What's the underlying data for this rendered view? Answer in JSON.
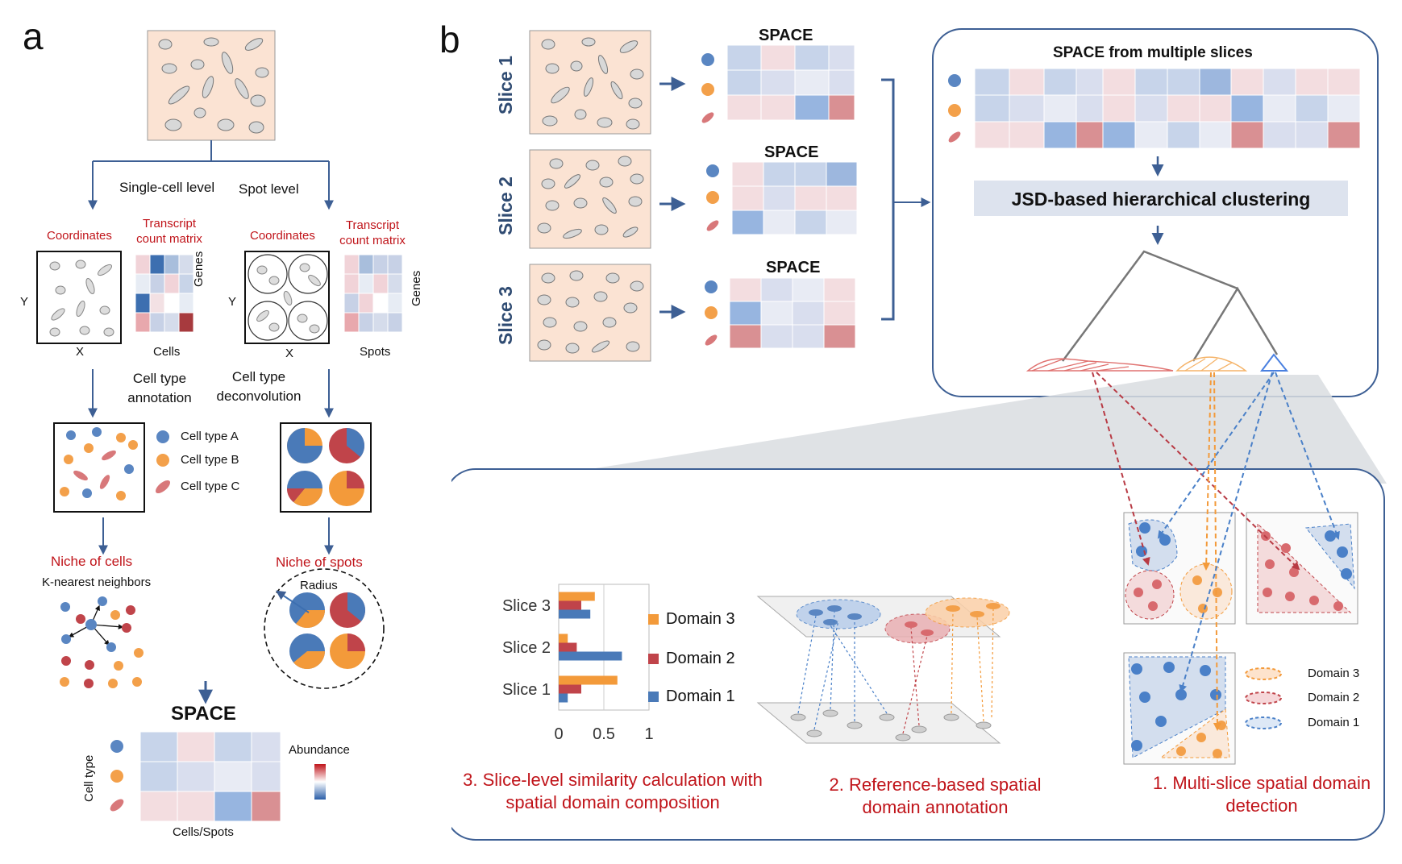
{
  "panel_a": {
    "label": "a",
    "single_cell_level": "Single-cell level",
    "spot_level": "Spot level",
    "coordinates_left": "Coordinates",
    "coordinates_right": "Coordinates",
    "transcript_left": "Transcript count matrix",
    "transcript_right": "Transcript count matrix",
    "axis_y": "Y",
    "axis_x": "X",
    "genes": "Genes",
    "cells": "Cells",
    "spots": "Spots",
    "cell_type_annotation": "Cell type annotation",
    "cell_type_deconvolution": "Cell type deconvolution",
    "legend": [
      "Cell type A",
      "Cell type B",
      "Cell type C"
    ],
    "niche_cells": "Niche of cells",
    "knn": "K-nearest neighbors",
    "niche_spots": "Niche of spots",
    "radius": "Radius",
    "space_title": "SPACE",
    "cell_type_axis": "Cell type",
    "cells_spots_axis": "Cells/Spots",
    "abundance": "Abundance"
  },
  "panel_b": {
    "label": "b",
    "slices": [
      "Slice 1",
      "Slice 2",
      "Slice 3"
    ],
    "space_label": "SPACE",
    "multi_title": "SPACE from multiple slices",
    "clustering": "JSD-based hierarchical clustering",
    "step3": "3. Slice-level similarity calculation with spatial domain composition",
    "step2": "2. Reference-based spatial domain annotation",
    "step1": "1. Multi-slice spatial domain detection",
    "domain_legend": [
      "Domain 3",
      "Domain 2",
      "Domain 1"
    ]
  },
  "colors": {
    "blue": "#4a7ab8",
    "orange": "#f39a3a",
    "red": "#c0444a",
    "tissue": "#fbe3d3",
    "arrow": "#3d5f94",
    "title_red": "#c0141a"
  },
  "chart_data": {
    "type": "bar",
    "orientation": "horizontal",
    "categories": [
      "Slice 3",
      "Slice 2",
      "Slice 1"
    ],
    "series": [
      {
        "name": "Domain 3",
        "color": "#f39a3a",
        "values": [
          0.4,
          0.1,
          0.65
        ]
      },
      {
        "name": "Domain 2",
        "color": "#c0444a",
        "values": [
          0.25,
          0.2,
          0.25
        ]
      },
      {
        "name": "Domain 1",
        "color": "#4a7ab8",
        "values": [
          0.35,
          0.7,
          0.1
        ]
      }
    ],
    "xlim": [
      0,
      1
    ],
    "xticks": [
      "0",
      "0.5",
      "1"
    ],
    "grid": true,
    "legend_position": "right"
  }
}
